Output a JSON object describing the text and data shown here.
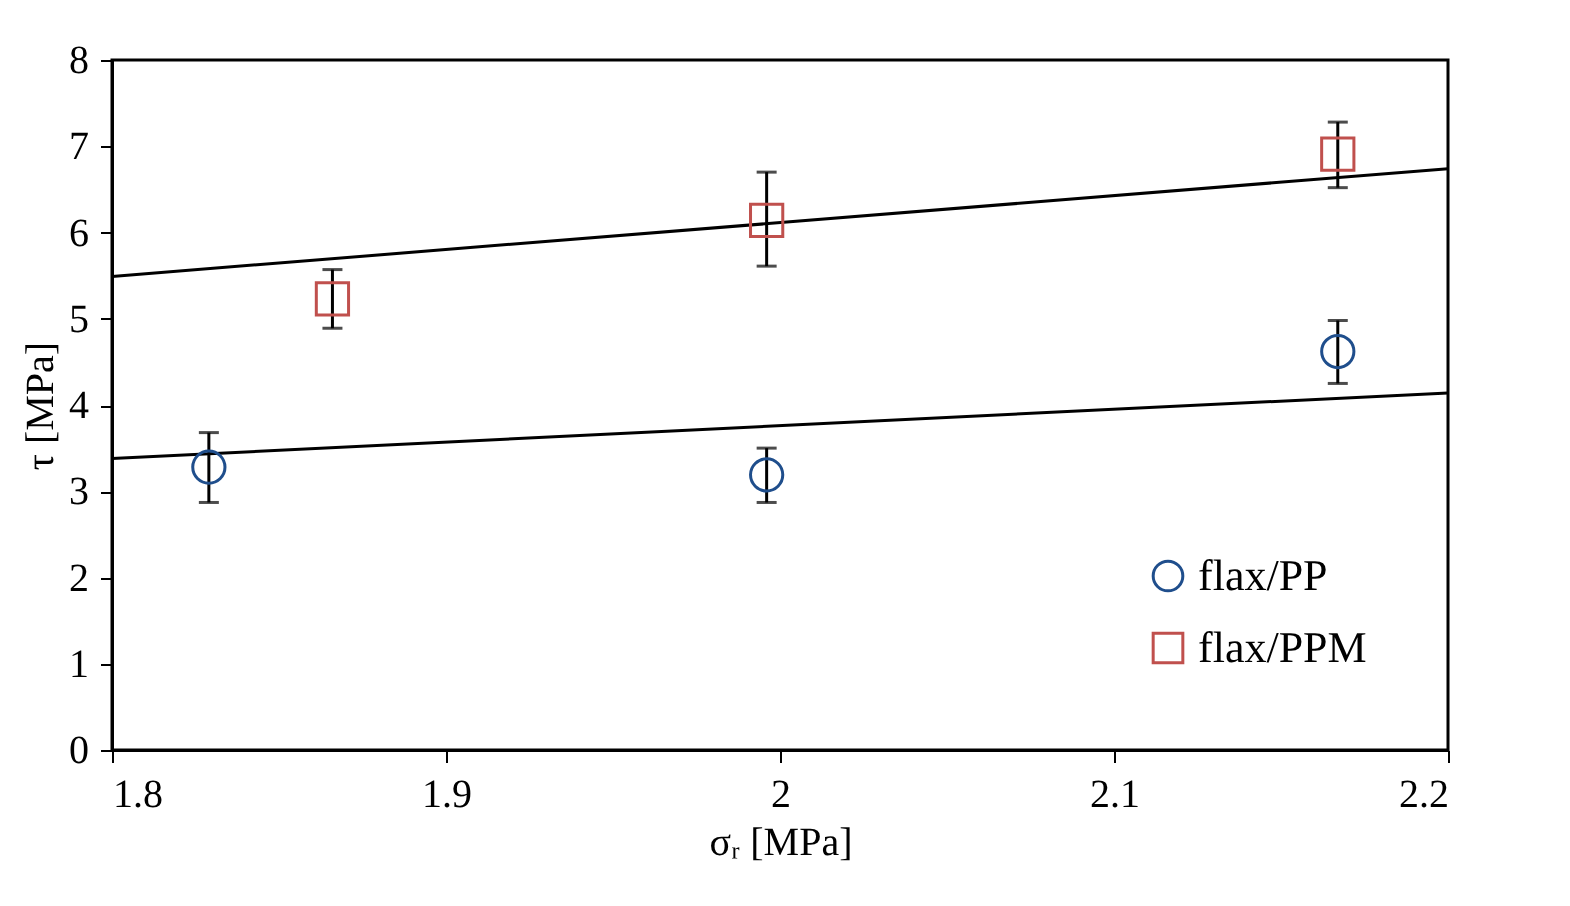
{
  "chart_data": {
    "type": "scatter",
    "xlabel": "σᵣ [MPa]",
    "ylabel": "τ [MPa]",
    "xlim": [
      1.8,
      2.2
    ],
    "xticks": [
      1.8,
      1.9,
      2,
      2.1,
      2.2
    ],
    "ylim": [
      0,
      8
    ],
    "yticks": [
      0,
      1,
      2,
      3,
      4,
      5,
      6,
      7,
      8
    ],
    "grid": false,
    "legend": "bottom right",
    "series": [
      {
        "name": "flax/PP",
        "color": "#1f4e8c",
        "marker": "circle",
        "x": [
          1.829,
          1.996,
          2.167
        ],
        "values": [
          3.28,
          3.19,
          4.62
        ],
        "errors": [
          [
            2.87,
            3.68
          ],
          [
            2.87,
            3.5
          ],
          [
            4.25,
            4.98
          ]
        ]
      },
      {
        "name": "flax/PPM",
        "color": "#c0504d",
        "marker": "square",
        "x": [
          1.866,
          1.996,
          2.167
        ],
        "values": [
          5.23,
          6.14,
          6.91
        ],
        "errors": [
          [
            4.89,
            5.57
          ],
          [
            5.61,
            6.7
          ],
          [
            6.52,
            7.28
          ]
        ]
      },
      {
        "type": "line",
        "color": "#000000",
        "x": [
          1.8,
          2.2
        ],
        "values": [
          3.38,
          4.14
        ]
      },
      {
        "type": "line",
        "color": "#000000",
        "x": [
          1.8,
          2.2
        ],
        "values": [
          5.49,
          6.74
        ]
      }
    ]
  }
}
